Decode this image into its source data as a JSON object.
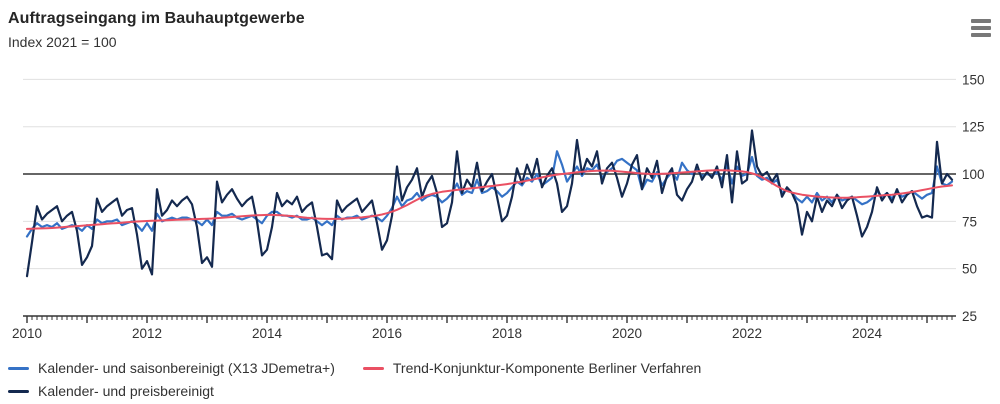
{
  "header": {
    "title": "Auftragseingang im Bauhauptgewerbe",
    "subtitle": "Index 2021 = 100"
  },
  "menu": {
    "icon": "hamburger-menu-icon"
  },
  "colors": {
    "axis": "#333333",
    "gridline": "#e0e0e0",
    "reference_line": "#333333",
    "text": "#333333"
  },
  "chart_data": {
    "type": "line",
    "title": "Auftragseingang im Bauhauptgewerbe",
    "subtitle": "Index 2021 = 100",
    "x_start_year": 2010,
    "x_months_per_point": 1,
    "xlim": [
      2010,
      2025.5
    ],
    "ylim": [
      25,
      150
    ],
    "y_ticks": [
      150,
      125,
      100,
      75,
      50,
      25
    ],
    "x_ticks": [
      2010,
      2012,
      2014,
      2016,
      2018,
      2020,
      2022,
      2024
    ],
    "reference_line": 100,
    "grid": "horizontal",
    "legend_position": "bottom",
    "series": [
      {
        "name": "Kalender- und saisonbereinigt (X13 JDemetra+)",
        "color": "#3572c6",
        "values": [
          67,
          71,
          74,
          72,
          73,
          72,
          74,
          71,
          72,
          73,
          72,
          70,
          73,
          71,
          76,
          74,
          75,
          75,
          76,
          73,
          74,
          75,
          73,
          70,
          74,
          70,
          79,
          75,
          76,
          77,
          76,
          77,
          77,
          76,
          75,
          73,
          76,
          73,
          80,
          78,
          78,
          79,
          77,
          76,
          77,
          78,
          76,
          74,
          78,
          80,
          80,
          78,
          78,
          77,
          78,
          76,
          76,
          77,
          75,
          73,
          75,
          73,
          78,
          76,
          77,
          77,
          78,
          76,
          77,
          78,
          77,
          75,
          78,
          82,
          88,
          83,
          86,
          87,
          90,
          86,
          88,
          89,
          88,
          85,
          87,
          90,
          95,
          89,
          91,
          90,
          97,
          90,
          91,
          93,
          91,
          88,
          90,
          93,
          96,
          94,
          98,
          96,
          100,
          94,
          96,
          98,
          112,
          105,
          96,
          100,
          104,
          99,
          103,
          102,
          105,
          98,
          101,
          103,
          107,
          108,
          106,
          104,
          102,
          92,
          97,
          96,
          101,
          94,
          98,
          101,
          97,
          106,
          102,
          100,
          102,
          99,
          100,
          99,
          101,
          97,
          105,
          95,
          104,
          99,
          100,
          109,
          99,
          97,
          98,
          95,
          97,
          90,
          92,
          90,
          87,
          85,
          88,
          85,
          90,
          86,
          88,
          85,
          89,
          86,
          87,
          88,
          86,
          84,
          85,
          87,
          91,
          88,
          90,
          87,
          91,
          88,
          89,
          91,
          89,
          87,
          89,
          90,
          104,
          95,
          94,
          96
        ]
      },
      {
        "name": "Trend-Konjunktur-Komponente Berliner Verfahren",
        "color": "#ea5063",
        "values": [
          71.0,
          71.1,
          71.2,
          71.3,
          71.4,
          71.5,
          71.7,
          71.9,
          72.1,
          72.3,
          72.5,
          72.7,
          72.9,
          73.1,
          73.3,
          73.5,
          73.7,
          73.9,
          74.1,
          74.3,
          74.5,
          74.7,
          74.9,
          75.1,
          75.2,
          75.3,
          75.4,
          75.5,
          75.6,
          75.7,
          75.8,
          75.9,
          76.0,
          76.1,
          76.2,
          76.3,
          76.4,
          76.5,
          76.7,
          76.9,
          77.1,
          77.3,
          77.5,
          77.7,
          77.9,
          78.1,
          78.2,
          78.3,
          78.4,
          78.4,
          78.3,
          78.2,
          78.0,
          77.8,
          77.5,
          77.2,
          76.9,
          76.7,
          76.5,
          76.4,
          76.3,
          76.3,
          76.3,
          76.4,
          76.5,
          76.7,
          76.9,
          77.1,
          77.4,
          77.7,
          78.1,
          78.6,
          79.3,
          80.1,
          81.1,
          82.3,
          83.6,
          85.0,
          86.4,
          87.7,
          88.7,
          89.5,
          90.1,
          90.6,
          91.0,
          91.3,
          91.6,
          91.9,
          92.2,
          92.5,
          92.8,
          93.1,
          93.4,
          93.7,
          94.0,
          94.3,
          94.7,
          95.1,
          95.5,
          96.0,
          96.5,
          97.0,
          97.6,
          98.2,
          98.8,
          99.3,
          99.7,
          100.0,
          100.3,
          100.6,
          100.9,
          101.2,
          101.4,
          101.6,
          101.7,
          101.8,
          101.8,
          101.7,
          101.5,
          101.3,
          101.0,
          100.8,
          100.5,
          100.3,
          100.1,
          100.0,
          100.0,
          100.1,
          100.2,
          100.4,
          100.6,
          100.8,
          101.0,
          101.2,
          101.4,
          101.6,
          101.8,
          101.9,
          102.0,
          102.0,
          101.9,
          101.8,
          101.6,
          101.4,
          101.0,
          100.4,
          99.5,
          98.3,
          96.8,
          95.2,
          93.6,
          92.2,
          91.0,
          90.2,
          89.6,
          89.1,
          88.7,
          88.4,
          88.1,
          87.9,
          87.7,
          87.6,
          87.5,
          87.5,
          87.5,
          87.6,
          87.7,
          87.9,
          88.1,
          88.3,
          88.5,
          88.7,
          88.9,
          89.1,
          89.4,
          89.7,
          90.1,
          90.5,
          91.0,
          91.5,
          92.0,
          92.5,
          93.0,
          93.4,
          93.7,
          94.0
        ]
      },
      {
        "name": "Kalender- und preisbereinigt",
        "color": "#14294f",
        "values": [
          46,
          64,
          83,
          76,
          79,
          81,
          83,
          75,
          78,
          80,
          70,
          52,
          56,
          62,
          87,
          80,
          83,
          85,
          87,
          78,
          81,
          82,
          68,
          50,
          54,
          47,
          92,
          78,
          81,
          86,
          83,
          86,
          88,
          84,
          72,
          53,
          56,
          51,
          96,
          85,
          89,
          92,
          87,
          83,
          86,
          88,
          75,
          57,
          60,
          72,
          90,
          83,
          86,
          84,
          88,
          80,
          83,
          85,
          72,
          57,
          58,
          55,
          86,
          80,
          83,
          85,
          87,
          80,
          83,
          86,
          74,
          60,
          65,
          78,
          104,
          86,
          93,
          97,
          103,
          88,
          95,
          99,
          90,
          72,
          74,
          85,
          112,
          90,
          97,
          93,
          106,
          91,
          96,
          100,
          88,
          75,
          78,
          88,
          103,
          95,
          105,
          98,
          108,
          93,
          99,
          103,
          95,
          80,
          83,
          95,
          118,
          100,
          108,
          104,
          112,
          95,
          103,
          106,
          98,
          88,
          95,
          105,
          110,
          92,
          103,
          98,
          107,
          90,
          99,
          103,
          89,
          86,
          92,
          96,
          105,
          97,
          101,
          98,
          104,
          93,
          110,
          85,
          112,
          95,
          97,
          123,
          104,
          99,
          101,
          96,
          100,
          88,
          93,
          90,
          84,
          68,
          80,
          75,
          88,
          80,
          86,
          83,
          89,
          82,
          86,
          88,
          78,
          67,
          72,
          80,
          93,
          86,
          90,
          85,
          92,
          85,
          89,
          91,
          83,
          77,
          78,
          77,
          117,
          95,
          100,
          97
        ]
      }
    ]
  },
  "legend": {
    "row1": [
      "Kalender- und saisonbereinigt (X13 JDemetra+)",
      "Trend-Konjunktur-Komponente Berliner Verfahren"
    ],
    "row2": [
      "Kalender- und preisbereinigt"
    ]
  }
}
